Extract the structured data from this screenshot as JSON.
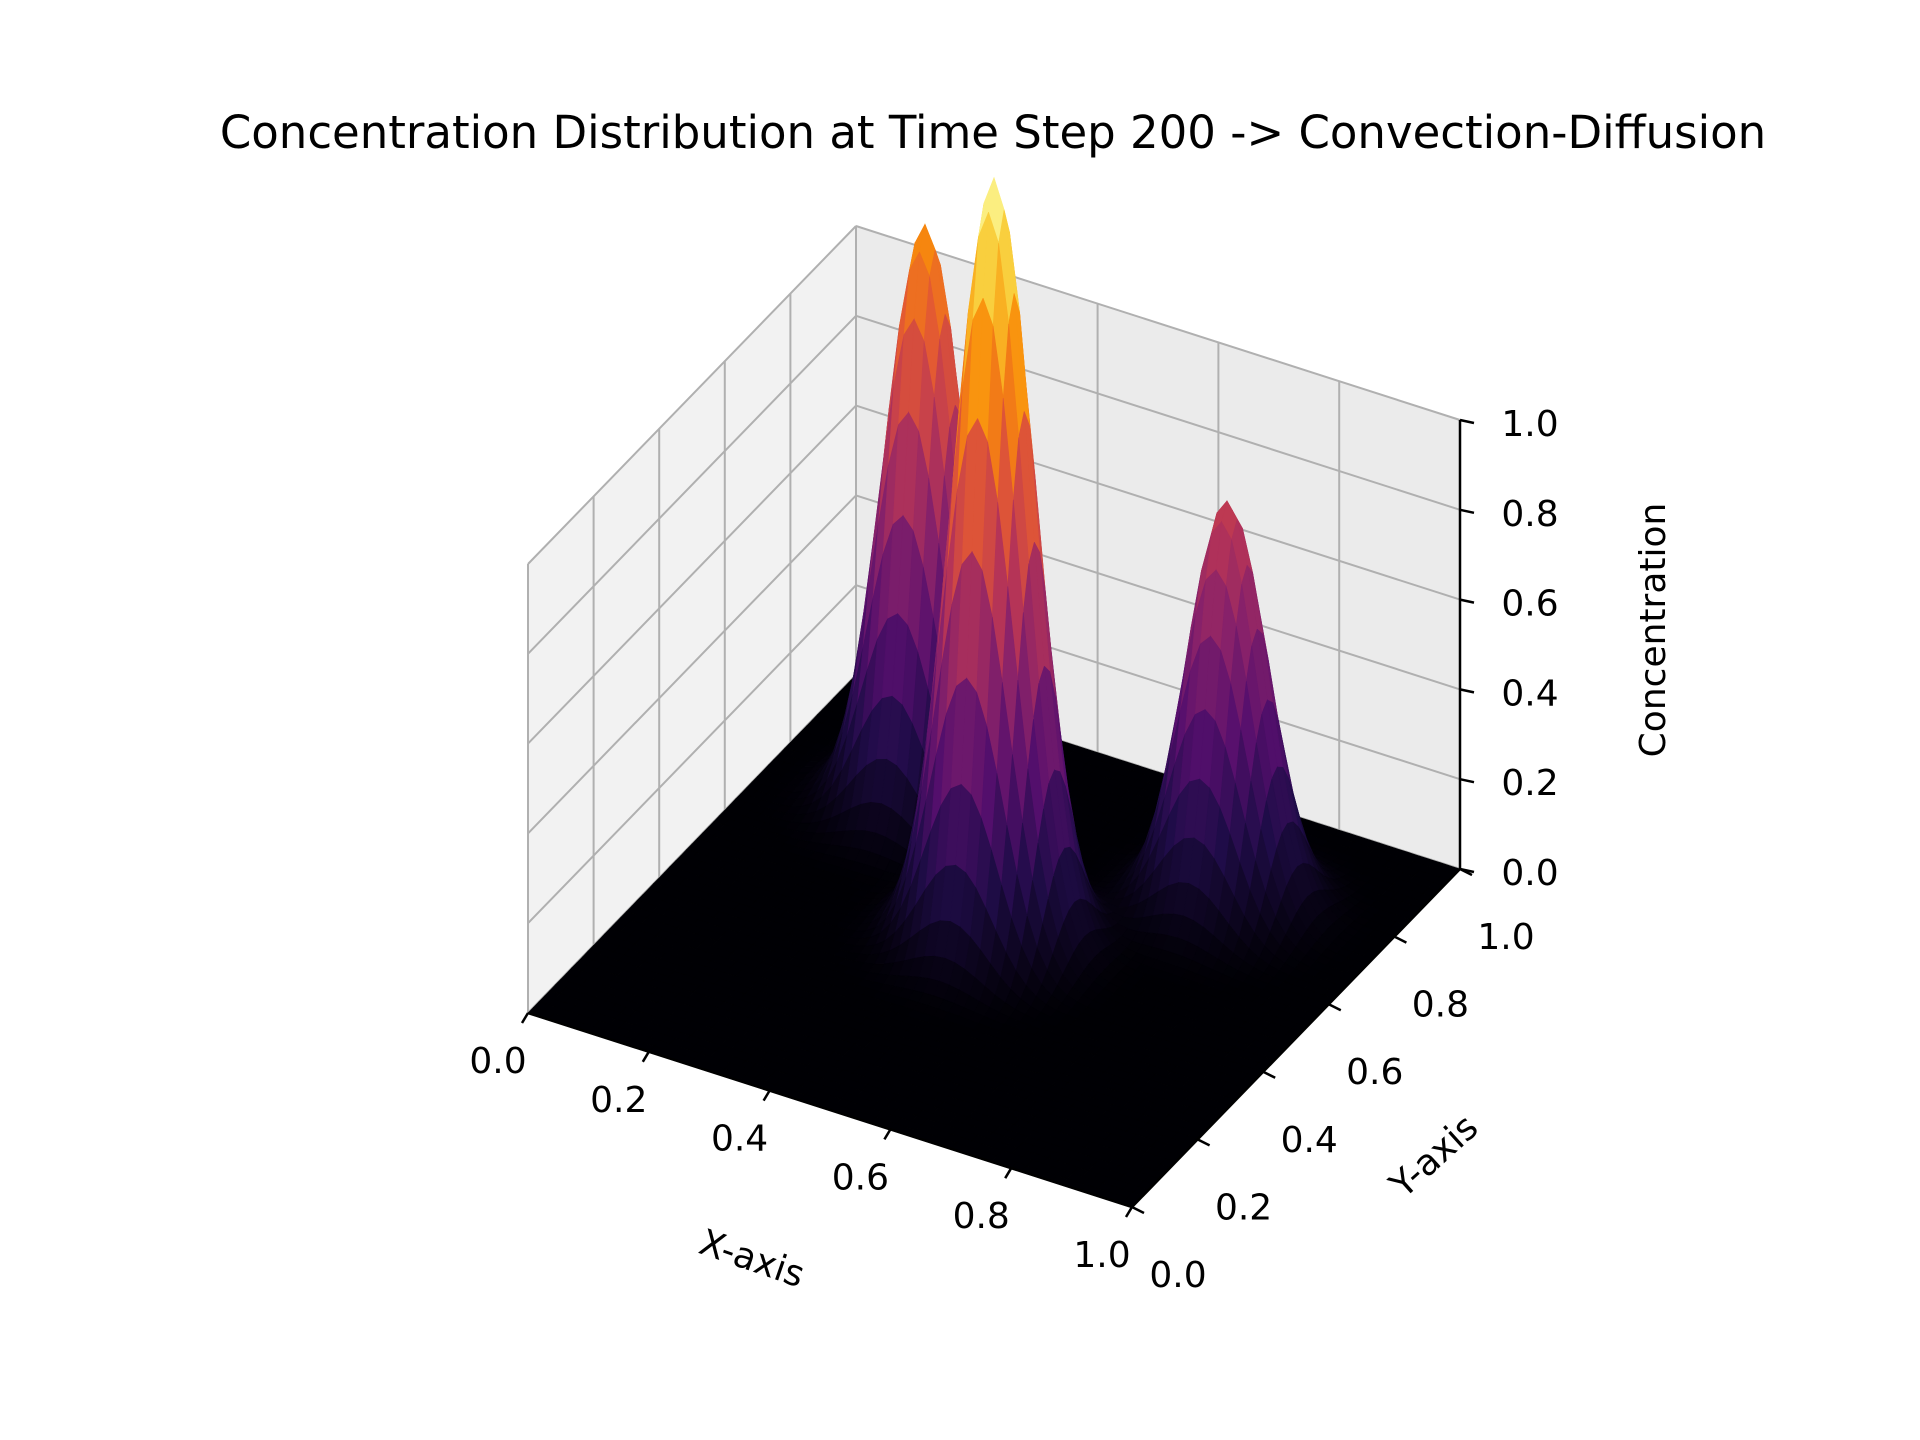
{
  "chart_data": {
    "type": "surface3d",
    "title": "Concentration Distribution at Time Step 200 -> Convection-Diffusion",
    "xlabel": "X-axis",
    "ylabel": "Y-axis",
    "zlabel": "Concentration",
    "xlim": [
      0,
      1
    ],
    "ylim": [
      0,
      1
    ],
    "zlim": [
      0,
      1
    ],
    "x_ticks": [
      "0.0",
      "0.2",
      "0.4",
      "0.6",
      "0.8",
      "1.0"
    ],
    "y_ticks": [
      "0.0",
      "0.2",
      "0.4",
      "0.6",
      "0.8",
      "1.0"
    ],
    "z_ticks": [
      "0.0",
      "0.2",
      "0.4",
      "0.6",
      "0.8",
      "1.0"
    ],
    "colormap": "inferno",
    "grid": true,
    "peaks": [
      {
        "x": 0.25,
        "y": 0.75,
        "height": 1.3,
        "width": 0.06
      },
      {
        "x": 0.5,
        "y": 0.5,
        "height": 1.7,
        "width": 0.06
      },
      {
        "x": 0.75,
        "y": 0.75,
        "height": 0.9,
        "width": 0.06
      }
    ]
  }
}
